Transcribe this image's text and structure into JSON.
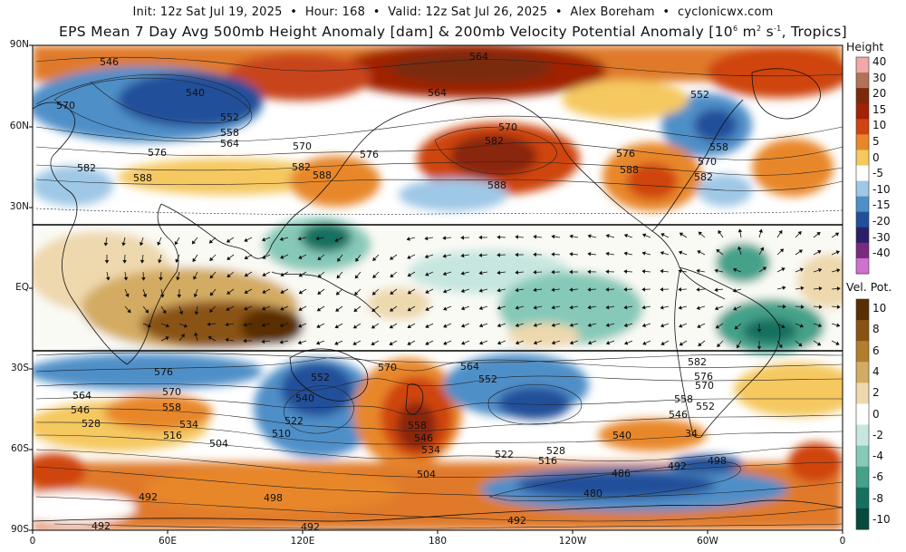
{
  "header": {
    "init": "Init: 12z Sat Jul 19, 2025",
    "hour": "Hour: 168",
    "valid": "Valid: 12z Sat Jul 26, 2025",
    "author": "Alex Boreham",
    "site": "cyclonicwx.com",
    "title_main": "EPS Mean 7 Day Avg 500mb Height Anomaly [dam] & 200mb Velocity Potential Anomaly [10",
    "title_exp": "6",
    "title_units_a": " m",
    "title_units_exp2": "2",
    "title_units_b": " s",
    "title_units_exp3": "-1",
    "title_tail": ", Tropics]"
  },
  "axes": {
    "y_ticks": [
      "90N",
      "60N",
      "30N",
      "EQ",
      "30S",
      "60S",
      "90S"
    ],
    "x_ticks": [
      "0",
      "60E",
      "120E",
      "180",
      "120W",
      "60W",
      "0"
    ]
  },
  "contour_labels": [
    {
      "text": "546"
    },
    {
      "text": "570"
    },
    {
      "text": "540"
    },
    {
      "text": "552"
    },
    {
      "text": "558"
    },
    {
      "text": "564"
    },
    {
      "text": "576"
    },
    {
      "text": "582"
    },
    {
      "text": "588"
    },
    {
      "text": "570"
    },
    {
      "text": "582"
    },
    {
      "text": "588"
    },
    {
      "text": "576"
    },
    {
      "text": "564"
    },
    {
      "text": "564"
    },
    {
      "text": "570"
    },
    {
      "text": "582"
    },
    {
      "text": "588"
    },
    {
      "text": "552"
    },
    {
      "text": "558"
    },
    {
      "text": "576"
    },
    {
      "text": "570"
    },
    {
      "text": "588"
    },
    {
      "text": "582"
    },
    {
      "text": "576"
    },
    {
      "text": "564"
    },
    {
      "text": "570"
    },
    {
      "text": "546"
    },
    {
      "text": "558"
    },
    {
      "text": "528"
    },
    {
      "text": "534"
    },
    {
      "text": "516"
    },
    {
      "text": "504"
    },
    {
      "text": "552"
    },
    {
      "text": "540"
    },
    {
      "text": "522"
    },
    {
      "text": "510"
    },
    {
      "text": "570"
    },
    {
      "text": "564"
    },
    {
      "text": "552"
    },
    {
      "text": "558"
    },
    {
      "text": "546"
    },
    {
      "text": "534"
    },
    {
      "text": "504"
    },
    {
      "text": "522"
    },
    {
      "text": "528"
    },
    {
      "text": "516"
    },
    {
      "text": "540"
    },
    {
      "text": "582"
    },
    {
      "text": "576"
    },
    {
      "text": "570"
    },
    {
      "text": "558"
    },
    {
      "text": "552"
    },
    {
      "text": "546"
    },
    {
      "text": "34"
    },
    {
      "text": "498"
    },
    {
      "text": "492"
    },
    {
      "text": "486"
    },
    {
      "text": "480"
    },
    {
      "text": "492"
    },
    {
      "text": "498"
    },
    {
      "text": "492"
    },
    {
      "text": "492"
    },
    {
      "text": "492"
    }
  ],
  "legend_height": {
    "title": "Height",
    "labels": [
      "40",
      "30",
      "20",
      "15",
      "10",
      "5",
      "0",
      "-5",
      "-10",
      "-15",
      "-20",
      "-30",
      "-40"
    ],
    "colors": [
      "#f2a8a8",
      "#b0735a",
      "#7a2a0a",
      "#a32106",
      "#cf4410",
      "#e8872a",
      "#f5c860",
      "#ffffff",
      "#9fc7e6",
      "#4f8fc8",
      "#214f9a",
      "#2b1f6a",
      "#7a2a7e",
      "#d070d0"
    ]
  },
  "legend_velpot": {
    "title": "Vel. Pot.",
    "labels": [
      "10",
      "8",
      "6",
      "4",
      "2",
      "0",
      "-2",
      "-4",
      "-6",
      "-8",
      "-10"
    ],
    "colors": [
      "#5a2e05",
      "#8a5212",
      "#b27e2d",
      "#d3ab62",
      "#eed8ad",
      "#ffffff",
      "#c8e6e0",
      "#86c9b8",
      "#45a18a",
      "#15705f",
      "#054a3c"
    ]
  }
}
